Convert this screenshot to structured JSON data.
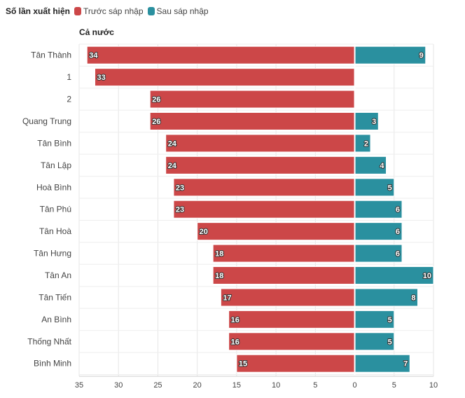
{
  "legend": {
    "title": "Số lần xuất hiện",
    "before_label": "Trước sáp nhập",
    "after_label": "Sau sáp nhập"
  },
  "colors": {
    "before": "#cc4748",
    "after": "#2a909f"
  },
  "chart_data": {
    "type": "bar",
    "orientation": "horizontal-diverging",
    "subtitle": "Cả nước",
    "categories": [
      "Tân Thành",
      "1",
      "2",
      "Quang Trung",
      "Tân Bình",
      "Tân Lập",
      "Hoà Bình",
      "Tân Phú",
      "Tân Hoà",
      "Tân Hưng",
      "Tân An",
      "Tân Tiến",
      "An Bình",
      "Thống Nhất",
      "Bình Minh"
    ],
    "series": [
      {
        "name": "Trước sáp nhập",
        "direction": "left",
        "values": [
          34,
          33,
          26,
          26,
          24,
          24,
          23,
          23,
          20,
          18,
          18,
          17,
          16,
          16,
          15
        ]
      },
      {
        "name": "Sau sáp nhập",
        "direction": "right",
        "values": [
          9,
          null,
          null,
          3,
          2,
          4,
          5,
          6,
          6,
          6,
          10,
          8,
          5,
          5,
          7
        ]
      }
    ],
    "xlim": [
      -35,
      10
    ],
    "xticks": [
      "35",
      "30",
      "25",
      "20",
      "15",
      "10",
      "5",
      "0",
      "5",
      "10"
    ],
    "grid": true
  }
}
